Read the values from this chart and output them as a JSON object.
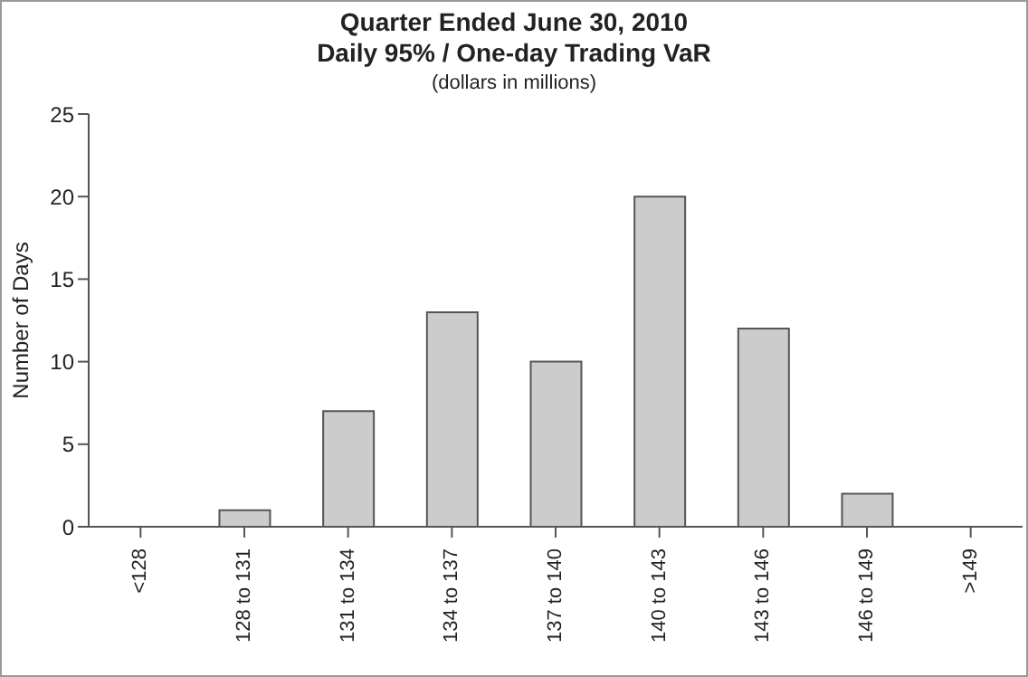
{
  "chart_data": {
    "type": "bar",
    "title": "Quarter Ended June 30, 2010\nDaily 95% / One-day Trading VaR",
    "subtitle": "(dollars in millions)",
    "ylabel": "Number of Days",
    "categories": [
      "<128",
      "128 to 131",
      "131 to 134",
      "134 to 137",
      "137 to 140",
      "140 to 143",
      "143 to 146",
      "146 to 149",
      ">149"
    ],
    "values": [
      0,
      1,
      7,
      13,
      10,
      20,
      12,
      2,
      0
    ],
    "color": "#cccccc",
    "ylim": [
      0,
      25
    ],
    "yticks": [
      0,
      5,
      10,
      15,
      20,
      25
    ],
    "grid": false,
    "legend": false
  }
}
